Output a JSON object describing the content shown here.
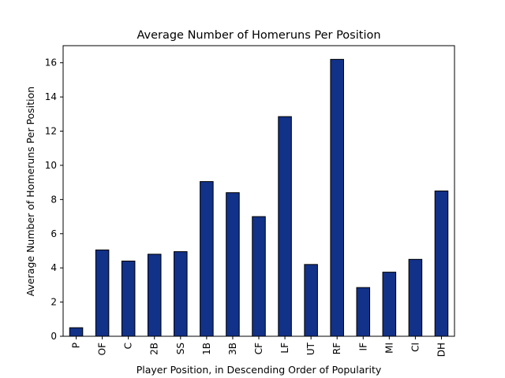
{
  "chart_data": {
    "type": "bar",
    "title": "Average Number of Homeruns Per Position",
    "xlabel": "Player Position, in Descending Order of Popularity",
    "ylabel": "Average Number of Homeruns Per Position",
    "categories": [
      "P",
      "OF",
      "C",
      "2B",
      "SS",
      "1B",
      "3B",
      "CF",
      "LF",
      "UT",
      "RF",
      "IF",
      "MI",
      "CI",
      "DH"
    ],
    "values": [
      0.5,
      5.05,
      4.4,
      4.8,
      4.95,
      9.05,
      8.4,
      7.0,
      12.85,
      4.2,
      16.2,
      2.85,
      3.75,
      4.5,
      8.5
    ],
    "ylim": [
      0,
      17
    ],
    "yticks": [
      0,
      2,
      4,
      6,
      8,
      10,
      12,
      14,
      16
    ],
    "bar_color": "#123188",
    "edge_color": "#000000",
    "grid": false,
    "legend": false
  }
}
